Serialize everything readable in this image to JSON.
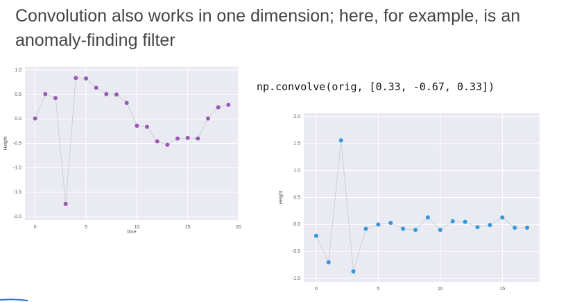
{
  "slide_title": "Convolution also works in one dimension; here, for example, is an anomaly-finding filter",
  "code": "np.convolve(orig, [0.33, -0.67, 0.33])",
  "chart_data": [
    {
      "type": "line",
      "x_label": "time",
      "y_label": "Height",
      "x": [
        0,
        1,
        2,
        3,
        4,
        5,
        6,
        7,
        8,
        9,
        10,
        11,
        12,
        13,
        14,
        15,
        16,
        17,
        18,
        19
      ],
      "values": [
        0.01,
        0.51,
        0.43,
        -1.74,
        0.84,
        0.83,
        0.64,
        0.51,
        0.5,
        0.33,
        -0.14,
        -0.16,
        -0.46,
        -0.53,
        -0.4,
        -0.39,
        -0.4,
        0.01,
        0.24,
        0.29
      ],
      "color": "#9b59b6",
      "line_color": "#cfcfd6",
      "xlim": [
        -1,
        20
      ],
      "ylim": [
        -2,
        1
      ],
      "xticks": [
        0,
        5,
        10,
        15,
        20
      ],
      "yticks": [
        {
          "value": 1,
          "label": "1.0"
        },
        0.5,
        {
          "value": 0,
          "label": "0.0"
        },
        -0.5,
        {
          "value": -1,
          "label": "-1.0"
        },
        -1.5,
        {
          "value": -2,
          "label": "-2.0"
        }
      ],
      "grid": true
    },
    {
      "type": "line",
      "y_label": "Height",
      "x": [
        0,
        1,
        2,
        3,
        4,
        5,
        6,
        7,
        8,
        9,
        10,
        11,
        12,
        13,
        14,
        15,
        16,
        17
      ],
      "values": [
        -0.21,
        -0.7,
        1.56,
        -0.87,
        -0.08,
        0.0,
        0.03,
        -0.08,
        -0.1,
        0.13,
        -0.1,
        0.06,
        0.05,
        -0.05,
        -0.01,
        0.13,
        -0.06,
        -0.06
      ],
      "color": "#3498db",
      "line_color": "#cfcfd6",
      "xlim": [
        -1,
        18
      ],
      "ylim": [
        -1,
        2
      ],
      "xticks": [
        0,
        5,
        10,
        15
      ],
      "yticks": [
        {
          "value": 2,
          "label": "2.0"
        },
        1.5,
        {
          "value": 1,
          "label": "1.0"
        },
        0.5,
        {
          "value": 0,
          "label": "0.0"
        },
        -0.5,
        {
          "value": -1,
          "label": "-1.0"
        }
      ],
      "grid": true
    }
  ]
}
